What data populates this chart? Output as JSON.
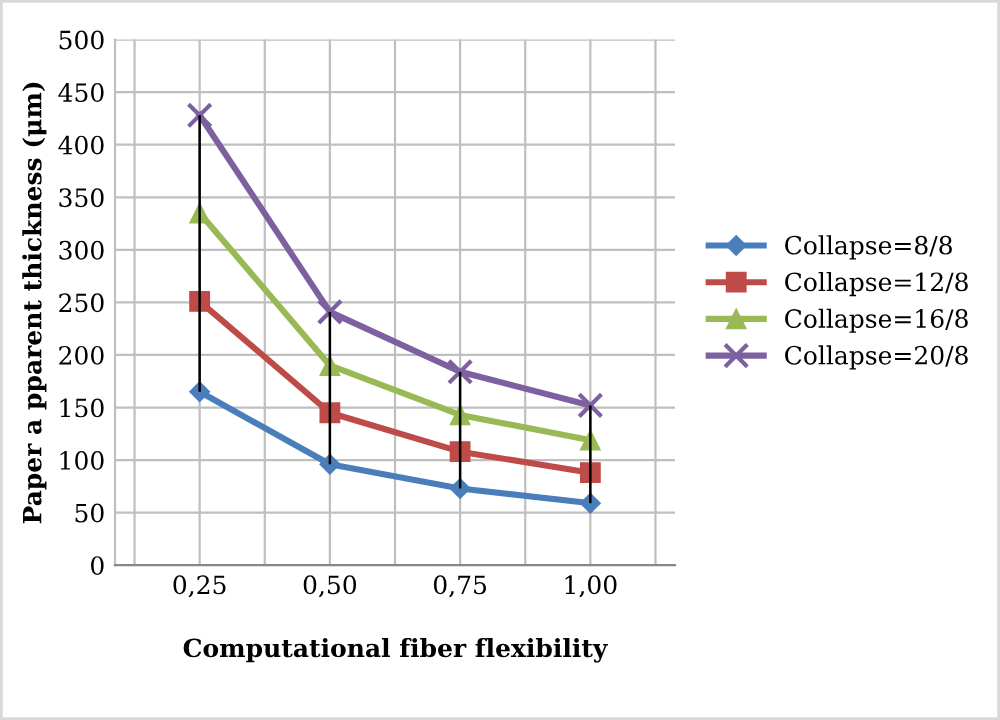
{
  "chart_data": {
    "type": "line",
    "xlabel": "Computational fiber flexibility",
    "ylabel": "Paper a pparent thickness (μm)",
    "categories": [
      "0,25",
      "0,50",
      "0,75",
      "1,00"
    ],
    "series": [
      {
        "name": "Collapse=8/8",
        "color": "#4a7ebb",
        "marker": "diamond",
        "values": [
          165,
          96,
          73,
          59
        ]
      },
      {
        "name": "Collapse=12/8",
        "color": "#be4b48",
        "marker": "square",
        "values": [
          251,
          145,
          108,
          88
        ]
      },
      {
        "name": "Collapse=16/8",
        "color": "#98b954",
        "marker": "triangle",
        "values": [
          335,
          190,
          143,
          119
        ]
      },
      {
        "name": "Collapse=20/8",
        "color": "#7d60a0",
        "marker": "cross",
        "values": [
          428,
          241,
          184,
          152
        ],
        "errors": [
          [
            165,
            428
          ],
          [
            96,
            241
          ],
          [
            73,
            184
          ],
          [
            59,
            152
          ]
        ]
      }
    ],
    "ylim": [
      0,
      500
    ],
    "yticks": [
      0,
      50,
      100,
      150,
      200,
      250,
      300,
      350,
      400,
      450,
      500
    ],
    "grid": true,
    "legend": "right"
  }
}
